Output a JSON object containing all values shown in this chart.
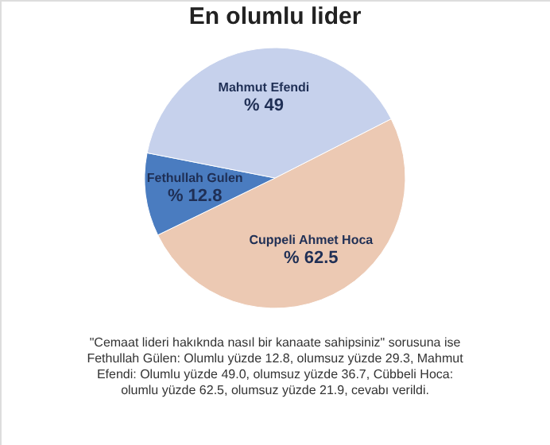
{
  "chart_data": {
    "type": "pie",
    "title": "En olumlu lider",
    "categories": [
      "Cuppeli Ahmet Hoca",
      "Fethullah Gulen",
      "Mahmut Efendi"
    ],
    "values": [
      62.5,
      12.8,
      49
    ],
    "value_labels": [
      "% 62.5",
      "% 12.8",
      "% 49"
    ],
    "colors": [
      "#ecc9b3",
      "#4a7cc0",
      "#c6d1ec"
    ],
    "annotations": [
      "\"Cemaat lideri hakıknda nasıl bir kanaate sahipsiniz\" sorusuna ise Fethullah Gülen: Olumlu yüzde 12.8, olumsuz yüzde 29.3, Mahmut Efendi: Olumlu yüzde 49.0, olumsuz yüzde 36.7, Cübbeli Hoca: olumlu yüzde 62.5, olumsuz yüzde 21.9,  cevabı verildi."
    ]
  }
}
